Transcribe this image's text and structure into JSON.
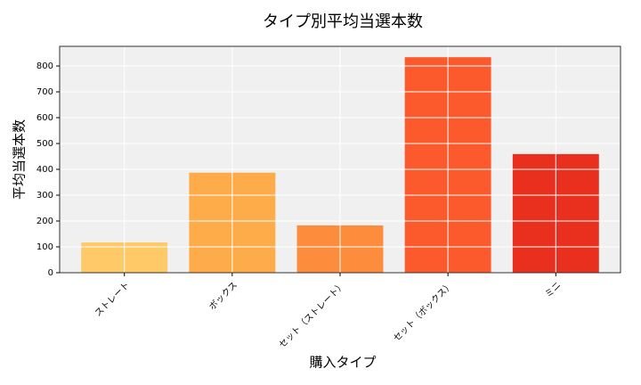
{
  "chart_data": {
    "type": "bar",
    "title": "タイプ別平均当選本数",
    "x_label": "購入タイプ",
    "y_label": "平均当選本数",
    "categories": [
      "ストレート",
      "ボックス",
      "セット（ストレート）",
      "セット（ボックス）",
      "ミニ"
    ],
    "values": [
      117,
      387,
      183,
      834,
      459
    ],
    "colors": [
      "#fec966",
      "#feab4a",
      "#fd8c3c",
      "#fc5a2d",
      "#e9301f"
    ],
    "ylim": [
      0,
      876
    ],
    "yticks": [
      0,
      100,
      200,
      300,
      400,
      500,
      600,
      700,
      800
    ],
    "grid": true
  }
}
